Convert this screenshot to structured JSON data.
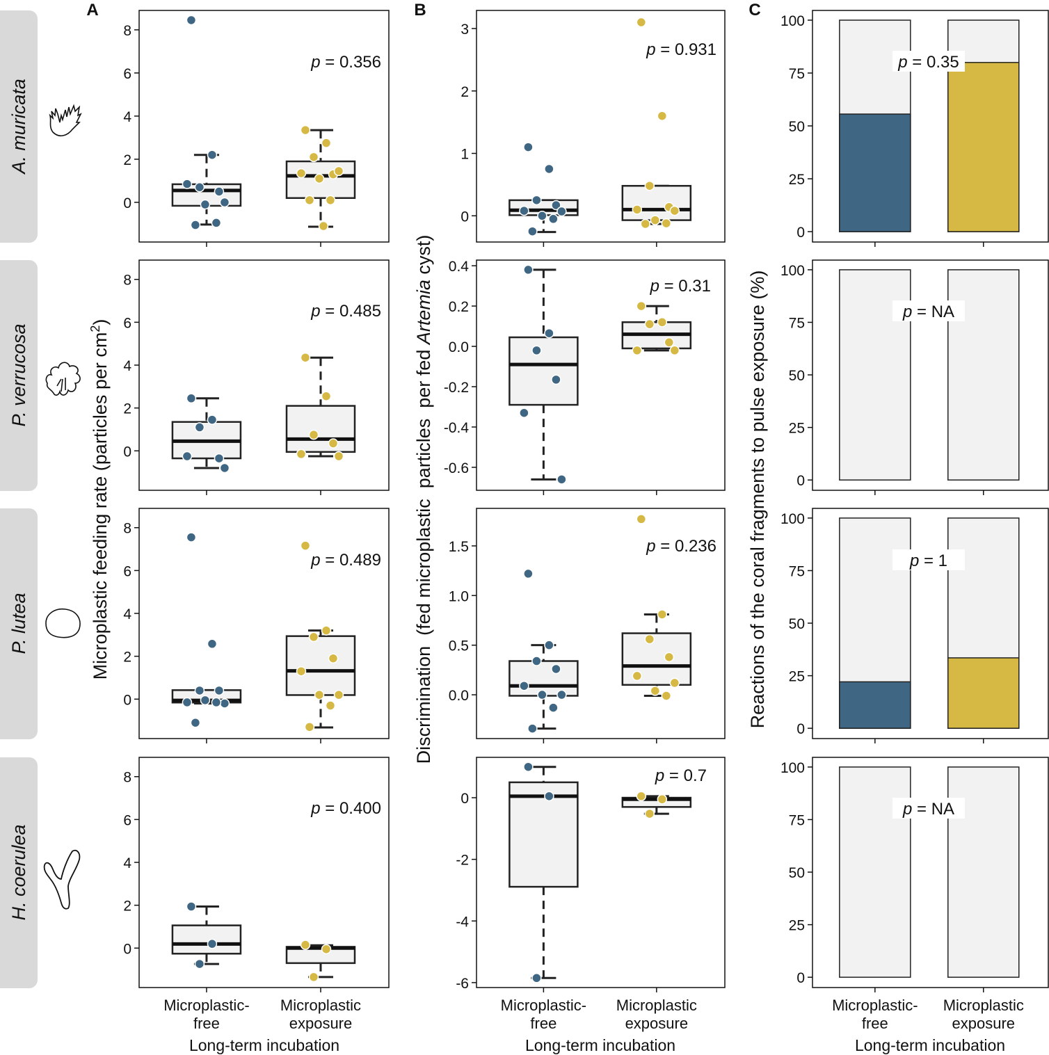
{
  "colors": {
    "free": "#3f6682",
    "exposure": "#d6b944",
    "box_fill": "#f2f2f2",
    "strip": "#d9d9d9"
  },
  "species": [
    "A. muricata",
    "P. verrucosa",
    "P. lutea",
    "H. coerulea"
  ],
  "panel_letters": [
    "A",
    "B",
    "C"
  ],
  "chart_data": [
    {
      "type": "box",
      "column": "A",
      "row": 0,
      "title": "A",
      "ylabel": "Microplastic feeding rate (particles per cm2)",
      "ylabel_main": "Microplastic feeding rate (particles per cm",
      "ylabel_sup": "2",
      "ylabel_end": ")",
      "xlabel": "Long-term incubation",
      "categories": [
        "Microplastic-\nfree",
        "Microplastic\nexposure"
      ],
      "ylim": [
        -1.84,
        8.9
      ],
      "ticks": [
        "0",
        "2",
        "4",
        "6",
        "8"
      ],
      "p_label": "0.356",
      "groups": [
        {
          "name": "Microplastic-free",
          "q1": -0.16,
          "median": 0.55,
          "q3": 0.84,
          "whisker_low": -1.03,
          "whisker_high": 2.2,
          "points": [
            8.45,
            2.2,
            0.7,
            0.5,
            0.85,
            0.0,
            -0.1,
            -0.95,
            -1.05
          ]
        },
        {
          "name": "Microplastic exposure",
          "q1": 0.2,
          "median": 1.23,
          "q3": 1.9,
          "whisker_low": -1.13,
          "whisker_high": 3.35,
          "points": [
            3.35,
            2.75,
            2.1,
            1.3,
            1.35,
            1.45,
            1.1,
            0.1,
            0.1,
            -1.1
          ]
        }
      ]
    },
    {
      "type": "box",
      "column": "A",
      "row": 1,
      "ylim": [
        -1.84,
        8.9
      ],
      "ticks": [
        "0",
        "2",
        "4",
        "6",
        "8"
      ],
      "p_label": "0.485",
      "groups": [
        {
          "q1": -0.35,
          "median": 0.45,
          "q3": 1.35,
          "whisker_low": -0.8,
          "whisker_high": 2.45,
          "points": [
            2.45,
            1.45,
            1.1,
            -0.35,
            -0.25,
            -0.8
          ]
        },
        {
          "q1": -0.05,
          "median": 0.55,
          "q3": 2.1,
          "whisker_low": -0.25,
          "whisker_high": 4.35,
          "points": [
            4.35,
            2.55,
            0.75,
            0.35,
            -0.15,
            -0.25
          ]
        }
      ]
    },
    {
      "type": "box",
      "column": "A",
      "row": 2,
      "ylim": [
        -1.84,
        8.9
      ],
      "ticks": [
        "0",
        "2",
        "4",
        "6",
        "8"
      ],
      "p_label": "0.489",
      "groups": [
        {
          "q1": -0.16,
          "median": -0.06,
          "q3": 0.42,
          "whisker_low": -0.2,
          "whisker_high": 0.42,
          "points": [
            7.55,
            2.58,
            0.4,
            0.4,
            -0.15,
            -0.2,
            -0.05,
            -0.15,
            -1.1
          ]
        },
        {
          "q1": 0.19,
          "median": 1.32,
          "q3": 2.94,
          "whisker_low": -1.32,
          "whisker_high": 3.2,
          "points": [
            7.16,
            3.2,
            2.9,
            1.9,
            1.3,
            0.2,
            0.2,
            -0.3,
            -1.3
          ]
        }
      ]
    },
    {
      "type": "box",
      "column": "A",
      "row": 3,
      "ylim": [
        -1.84,
        8.9
      ],
      "ticks": [
        "0",
        "2",
        "4",
        "6",
        "8"
      ],
      "p_label": "0.400",
      "groups": [
        {
          "q1": -0.26,
          "median": 0.19,
          "q3": 1.06,
          "whisker_low": -0.74,
          "whisker_high": 1.94,
          "points": [
            1.94,
            0.2,
            -0.74
          ]
        },
        {
          "q1": -0.7,
          "median": 0.0,
          "q3": 0.06,
          "whisker_low": -1.35,
          "whisker_high": 0.13,
          "points": [
            0.15,
            -0.05,
            -1.35
          ]
        }
      ]
    },
    {
      "type": "box",
      "column": "B",
      "row": 0,
      "title": "B",
      "ylabel_pre": "Discrimination  (fed microplastic  particles  per fed ",
      "ylabel_it": "Artemia",
      "ylabel_post": " cyst)",
      "xlabel": "Long-term incubation",
      "categories": [
        "Microplastic-\nfree",
        "Microplastic\nexposure"
      ],
      "ylim": [
        -0.42,
        3.29
      ],
      "ticks": [
        "0",
        "1",
        "2",
        "3"
      ],
      "tick_values": [
        0,
        1,
        2,
        3
      ],
      "p_label": "0.931",
      "groups": [
        {
          "q1": 0.01,
          "median": 0.09,
          "q3": 0.25,
          "whisker_low": -0.26,
          "whisker_high": 0.25,
          "points": [
            1.1,
            0.75,
            0.25,
            0.17,
            0.08,
            0.07,
            0.0,
            -0.05,
            -0.25
          ]
        },
        {
          "q1": -0.07,
          "median": 0.1,
          "q3": 0.48,
          "whisker_low": -0.13,
          "whisker_high": 0.48,
          "points": [
            3.1,
            1.6,
            0.48,
            0.14,
            0.1,
            0.08,
            -0.07,
            -0.12,
            -0.13
          ]
        }
      ]
    },
    {
      "type": "box",
      "column": "B",
      "row": 1,
      "ylim": [
        -0.714,
        0.428
      ],
      "ticks": [
        "-0.6",
        "-0.4",
        "-0.2",
        "0.0",
        "0.2",
        "0.4"
      ],
      "tick_values": [
        -0.6,
        -0.4,
        -0.2,
        0,
        0.2,
        0.4
      ],
      "p_label": "0.31",
      "groups": [
        {
          "q1": -0.29,
          "median": -0.09,
          "q3": 0.045,
          "whisker_low": -0.66,
          "whisker_high": 0.38,
          "points": [
            0.38,
            0.065,
            -0.02,
            -0.165,
            -0.33,
            -0.66
          ]
        },
        {
          "q1": -0.01,
          "median": 0.06,
          "q3": 0.12,
          "whisker_low": -0.02,
          "whisker_high": 0.2,
          "points": [
            0.2,
            0.12,
            0.11,
            0.02,
            -0.02,
            -0.02
          ]
        }
      ]
    },
    {
      "type": "box",
      "column": "B",
      "row": 2,
      "ylim": [
        -0.441,
        1.878
      ],
      "ticks": [
        "0.0",
        "0.5",
        "1.0",
        "1.5"
      ],
      "tick_values": [
        0,
        0.5,
        1,
        1.5
      ],
      "p_label": "0.236",
      "groups": [
        {
          "q1": -0.01,
          "median": 0.09,
          "q3": 0.34,
          "whisker_low": -0.34,
          "whisker_high": 0.5,
          "points": [
            1.22,
            0.5,
            0.34,
            0.26,
            0.09,
            0.0,
            0.0,
            -0.13,
            -0.34
          ]
        },
        {
          "q1": 0.1,
          "median": 0.29,
          "q3": 0.62,
          "whisker_low": -0.01,
          "whisker_high": 0.81,
          "points": [
            1.77,
            0.81,
            0.56,
            0.38,
            0.19,
            0.12,
            0.04,
            -0.01
          ]
        }
      ]
    },
    {
      "type": "box",
      "column": "B",
      "row": 3,
      "ylim": [
        -6.16,
        1.31
      ],
      "ticks": [
        "-6",
        "-4",
        "-2",
        "0"
      ],
      "tick_values": [
        -6,
        -4,
        -2,
        0
      ],
      "p_label": "0.7",
      "groups": [
        {
          "q1": -2.89,
          "median": 0.05,
          "q3": 0.5,
          "whisker_low": -5.85,
          "whisker_high": 1.0,
          "points": [
            1.0,
            0.05,
            -5.85
          ]
        },
        {
          "q1": -0.3,
          "median": -0.05,
          "q3": 0.0,
          "whisker_low": -0.52,
          "whisker_high": 0.05,
          "points": [
            0.05,
            -0.05,
            -0.52
          ]
        }
      ]
    },
    {
      "type": "bar",
      "column": "C",
      "row": 0,
      "title": "C",
      "ylabel": "Reactions of the coral fragments to pulse exposure (%)",
      "xlabel": "Long-term incubation",
      "categories": [
        "Microplastic-\nfree",
        "Microplastic\nexposure"
      ],
      "ylim": [
        -4.9,
        104.6
      ],
      "ticks": [
        "0",
        "25",
        "50",
        "75",
        "100"
      ],
      "p_label": "0.35",
      "values": [
        55.6,
        80.0
      ]
    },
    {
      "type": "bar",
      "column": "C",
      "row": 1,
      "ylim": [
        -4.9,
        104.6
      ],
      "ticks": [
        "0",
        "25",
        "50",
        "75",
        "100"
      ],
      "p_label": "NA",
      "values": [
        0,
        0
      ]
    },
    {
      "type": "bar",
      "column": "C",
      "row": 2,
      "ylim": [
        -4.9,
        104.6
      ],
      "ticks": [
        "0",
        "25",
        "50",
        "75",
        "100"
      ],
      "p_label": "1",
      "values": [
        22.1,
        33.5
      ]
    },
    {
      "type": "bar",
      "column": "C",
      "row": 3,
      "ylim": [
        -4.9,
        104.6
      ],
      "ticks": [
        "0",
        "25",
        "50",
        "75",
        "100"
      ],
      "p_label": "NA",
      "values": [
        0,
        0
      ]
    }
  ],
  "labels": {
    "p": "p",
    "eq": " = ",
    "x_cat_1a": "Microplastic-",
    "x_cat_1b": "free",
    "x_cat_2a": "Microplastic",
    "x_cat_2b": "exposure",
    "xlabel": "Long-term incubation"
  }
}
